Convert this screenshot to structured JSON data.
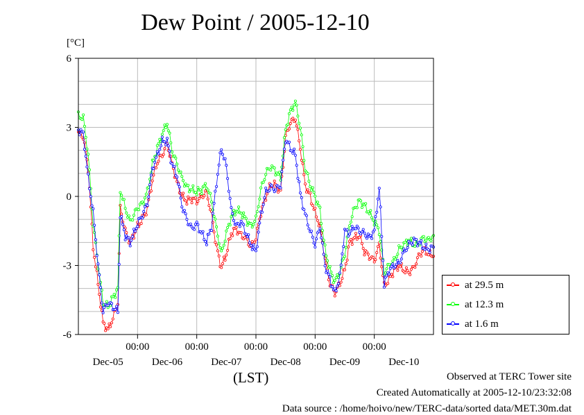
{
  "page": {
    "observed": "Observed at TERC Tower site",
    "created": "Created Automatically at 2005-12-10/23:32:08",
    "source": "Data source : /home/hoivo/new/TERC-data/sorted  data/MET.30m.dat"
  },
  "chart_data": {
    "type": "line",
    "title": "Dew Point / 2005-12-10",
    "ylabel": "[°C]",
    "xlabel": "(LST)",
    "ylim": [
      -6,
      6
    ],
    "yticks": [
      -6,
      -3,
      0,
      3,
      6
    ],
    "ytick_labels": [
      "-6",
      "-3",
      "0",
      "3",
      "6"
    ],
    "xlim_hours": [
      0,
      144
    ],
    "xticks_hours": [
      24,
      48,
      72,
      96,
      120
    ],
    "xtick_labels": [
      "00:00",
      "00:00",
      "00:00",
      "00:00",
      "00:00"
    ],
    "day_labels": [
      {
        "hour": 12,
        "label": "Dec-05"
      },
      {
        "hour": 36,
        "label": "Dec-06"
      },
      {
        "hour": 60,
        "label": "Dec-07"
      },
      {
        "hour": 84,
        "label": "Dec-08"
      },
      {
        "hour": 108,
        "label": "Dec-09"
      },
      {
        "hour": 132,
        "label": "Dec-10"
      }
    ],
    "grid": true,
    "legend_position": "bottom-right outside",
    "series": [
      {
        "name": "at 29.5 m",
        "color": "#ff0000",
        "x": [
          0,
          2,
          4,
          6,
          8,
          10,
          12,
          14,
          16,
          17,
          19,
          21,
          24,
          26,
          28,
          30,
          32,
          34,
          36,
          38,
          40,
          42,
          44,
          46,
          48,
          50,
          52,
          54,
          56,
          58,
          60,
          62,
          64,
          66,
          68,
          70,
          72,
          74,
          76,
          78,
          80,
          82,
          84,
          86,
          88,
          90,
          92,
          94,
          96,
          98,
          100,
          102,
          104,
          106,
          108,
          110,
          112,
          114,
          116,
          118,
          120,
          122,
          124,
          126,
          128,
          130,
          132,
          134,
          136,
          138,
          140,
          142,
          144
        ],
        "y": [
          2.8,
          2.6,
          1.2,
          -2.2,
          -3.8,
          -5.5,
          -5.8,
          -5.3,
          -4.6,
          -0.5,
          -1.5,
          -2.0,
          -1.3,
          -1.0,
          -0.5,
          0.7,
          1.5,
          1.8,
          2.3,
          1.4,
          0.6,
          0.0,
          -0.2,
          -0.1,
          -0.2,
          0.0,
          0.2,
          -0.8,
          -2.2,
          -3.1,
          -2.5,
          -1.6,
          -1.4,
          -1.7,
          -1.8,
          -2.2,
          -1.8,
          -0.7,
          0.0,
          0.5,
          0.5,
          0.2,
          2.6,
          3.2,
          3.4,
          2.1,
          0.5,
          0.0,
          -0.7,
          -1.3,
          -2.7,
          -3.8,
          -4.2,
          -3.8,
          -3.2,
          -2.0,
          -1.8,
          -1.7,
          -2.4,
          -2.6,
          -2.8,
          -2.1,
          -3.9,
          -3.6,
          -3.2,
          -3.0,
          -3.2,
          -3.3,
          -3.1,
          -2.6,
          -2.3,
          -2.5,
          -2.6
        ]
      },
      {
        "name": "at 12.3 m",
        "color": "#00ff00",
        "x": [
          0,
          2,
          4,
          6,
          8,
          10,
          12,
          14,
          16,
          17,
          19,
          21,
          24,
          26,
          28,
          30,
          32,
          34,
          36,
          38,
          40,
          42,
          44,
          46,
          48,
          50,
          52,
          54,
          56,
          58,
          60,
          62,
          64,
          66,
          68,
          70,
          72,
          74,
          76,
          78,
          80,
          82,
          84,
          86,
          88,
          90,
          92,
          94,
          96,
          98,
          100,
          102,
          104,
          106,
          108,
          110,
          112,
          114,
          116,
          118,
          120,
          122,
          124,
          126,
          128,
          130,
          132,
          134,
          136,
          138,
          140,
          142,
          144
        ],
        "y": [
          3.5,
          3.4,
          1.8,
          -1.2,
          -3.0,
          -4.6,
          -4.8,
          -4.4,
          -4.0,
          0.3,
          -0.5,
          -1.1,
          -0.5,
          -0.3,
          0.2,
          1.4,
          2.1,
          2.7,
          3.2,
          2.0,
          1.4,
          0.8,
          0.4,
          0.3,
          0.2,
          0.3,
          0.5,
          -0.2,
          -1.4,
          -2.5,
          -1.6,
          -0.9,
          -0.6,
          -0.7,
          -1.0,
          -1.3,
          -1.0,
          0.3,
          1.0,
          1.3,
          1.1,
          0.8,
          2.9,
          3.7,
          4.1,
          3.0,
          1.2,
          0.5,
          0.0,
          -0.6,
          -2.3,
          -3.2,
          -3.7,
          -3.3,
          -2.5,
          -1.2,
          -0.5,
          -0.2,
          -0.4,
          -0.7,
          -1.1,
          -1.5,
          -3.3,
          -3.0,
          -2.8,
          -2.3,
          -2.1,
          -1.9,
          -2.1,
          -2.0,
          -1.8,
          -1.9,
          -1.7
        ]
      },
      {
        "name": "at 1.6 m",
        "color": "#0000ff",
        "x": [
          0,
          2,
          4,
          6,
          8,
          10,
          12,
          14,
          16,
          17,
          19,
          21,
          24,
          26,
          28,
          30,
          32,
          34,
          36,
          38,
          40,
          42,
          44,
          46,
          48,
          50,
          52,
          54,
          56,
          58,
          60,
          62,
          64,
          66,
          68,
          70,
          72,
          74,
          76,
          78,
          80,
          82,
          84,
          86,
          88,
          90,
          92,
          94,
          96,
          98,
          100,
          102,
          104,
          106,
          108,
          110,
          112,
          114,
          116,
          118,
          120,
          122,
          124,
          126,
          128,
          130,
          132,
          134,
          136,
          138,
          140,
          142,
          144
        ],
        "y": [
          2.9,
          2.7,
          0.8,
          -0.7,
          -3.0,
          -5.0,
          -4.6,
          -4.8,
          -5.0,
          -0.8,
          -1.7,
          -2.0,
          -1.2,
          -0.8,
          -0.3,
          1.2,
          1.8,
          2.4,
          2.4,
          1.4,
          0.9,
          -0.4,
          -1.0,
          -1.4,
          -1.2,
          -1.6,
          -2.0,
          -1.3,
          0.6,
          2.1,
          1.3,
          -0.6,
          -1.3,
          -1.1,
          -1.6,
          -2.1,
          -2.4,
          -0.8,
          0.2,
          0.4,
          0.3,
          0.5,
          2.5,
          2.1,
          1.8,
          0.1,
          -0.8,
          -1.5,
          -2.1,
          -1.3,
          -3.0,
          -3.6,
          -4.2,
          -3.5,
          -1.5,
          -1.6,
          -1.3,
          -1.5,
          -1.6,
          -1.8,
          -1.5,
          0.4,
          -3.8,
          -3.2,
          -3.0,
          -2.9,
          -2.4,
          -2.1,
          -1.9,
          -2.0,
          -2.2,
          -2.3,
          -2.2
        ]
      }
    ]
  }
}
